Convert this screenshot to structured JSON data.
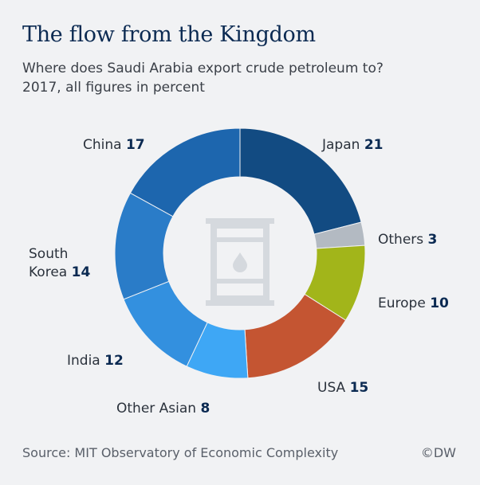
{
  "header": {
    "title": "The flow from the Kingdom",
    "subtitle_line1": "Where does Saudi Arabia export crude petroleum to?",
    "subtitle_line2": "2017, all figures in percent"
  },
  "chart_data": {
    "type": "pie",
    "variant": "donut",
    "title": "The flow from the Kingdom",
    "subtitle": "Where does Saudi Arabia export crude petroleum to? 2017, all figures in percent",
    "unit": "percent",
    "direction": "clockwise from top",
    "categories": [
      "Japan",
      "Others",
      "Europe",
      "USA",
      "Other Asian",
      "India",
      "South Korea",
      "China"
    ],
    "values": [
      21,
      3,
      10,
      15,
      8,
      12,
      14,
      17
    ],
    "colors": [
      "#124b82",
      "#b3bac2",
      "#a2b51a",
      "#c45532",
      "#3ea7f5",
      "#3390df",
      "#2a7cc8",
      "#1d66ae"
    ],
    "label_names": [
      "Japan",
      "Others",
      "Europe",
      "USA",
      "Other Asian",
      "India",
      "South\nKorea",
      "China"
    ],
    "center_icon": "oil-barrel-icon"
  },
  "footer": {
    "source": "Source: MIT Observatory of Economic Complexity",
    "copyright": "©DW"
  }
}
